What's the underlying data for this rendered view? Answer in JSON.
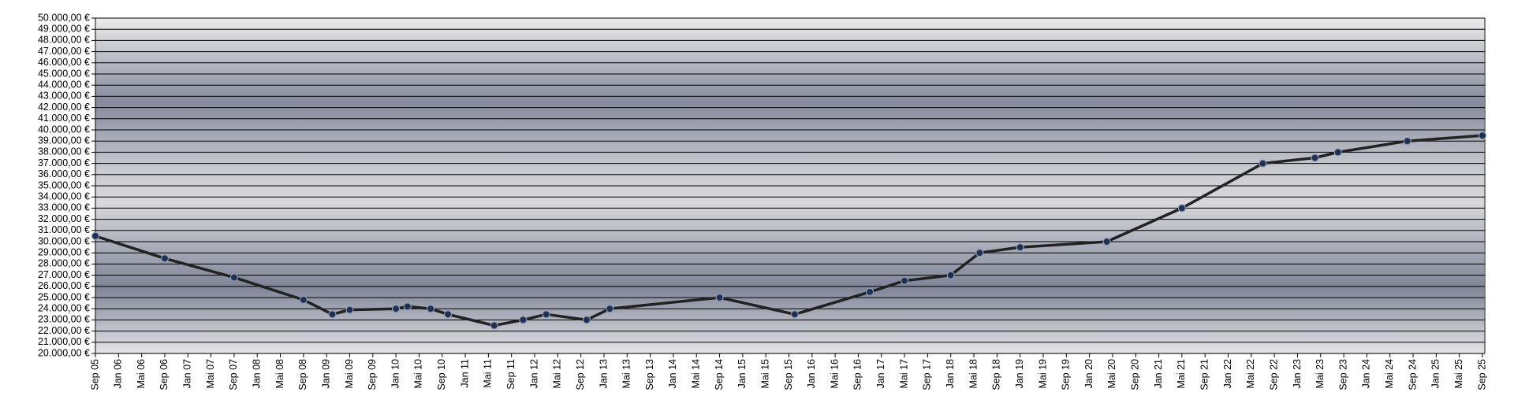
{
  "chart_data": {
    "type": "line",
    "categories": [
      "Sep 05",
      "Jan 06",
      "Mai 06",
      "Sep 06",
      "Jan 07",
      "Mai 07",
      "Sep 07",
      "Jan 08",
      "Mai 08",
      "Sep 08",
      "Jan 09",
      "Mai 09",
      "Sep 09",
      "Jan 10",
      "Mai 10",
      "Sep 10",
      "Jan 11",
      "Mai 11",
      "Sep 11",
      "Jan 12",
      "Mai 12",
      "Sep 12",
      "Jan 13",
      "Mai 13",
      "Sep 13",
      "Jan 14",
      "Mai 14",
      "Sep 14",
      "Jan 15",
      "Mai 15",
      "Sep 15",
      "Jan 16",
      "Mai 16",
      "Sep 16",
      "Jan 17",
      "Mai 17",
      "Sep 17",
      "Jan 18",
      "Mai 18",
      "Sep 18",
      "Jan 19",
      "Mai 19",
      "Sep 19",
      "Jan 20",
      "Mai 20",
      "Sep 20",
      "Jan 21",
      "Mai 21",
      "Sep 21",
      "Jan 22",
      "Mai 22",
      "Sep 22",
      "Jan 23",
      "Mai 23",
      "Sep 23",
      "Jan 24",
      "Mai 24",
      "Sep 24",
      "Jan 25",
      "Mai 25",
      "Sep 25"
    ],
    "x": [
      "Sep 05",
      "Sep 06",
      "Sep 07",
      "Sep 08",
      "Feb 09",
      "Mai 09",
      "Jan 10",
      "Mär 10",
      "Jul 10",
      "Okt 10",
      "Jun 11",
      "Nov 11",
      "Mär 12",
      "Okt 12",
      "Feb 13",
      "Sep 14",
      "Okt 15",
      "Nov 16",
      "Mai 17",
      "Jan 18",
      "Jun 18",
      "Jan 19",
      "Apr 20",
      "Mai 21",
      "Jul 22",
      "Apr 23",
      "Aug 23",
      "Aug 24",
      "Sep 25"
    ],
    "values": [
      30500,
      28500,
      26800,
      24800,
      23500,
      23900,
      24000,
      24200,
      24000,
      23500,
      22500,
      23000,
      23500,
      23000,
      24000,
      25000,
      23500,
      25500,
      26500,
      27000,
      29000,
      29500,
      30000,
      33000,
      37000,
      37500,
      38000,
      39000,
      39500
    ],
    "color": "#222222",
    "marker_color": "#1f3050",
    "ylim": [
      20000,
      50000
    ],
    "yticks": [
      {
        "value": 20000,
        "label": "20.000,00 €"
      },
      {
        "value": 21000,
        "label": "21.000,00 €"
      },
      {
        "value": 22000,
        "label": "22.000,00 €"
      },
      {
        "value": 23000,
        "label": "23.000,00 €"
      },
      {
        "value": 24000,
        "label": "24.000,00 €"
      },
      {
        "value": 25000,
        "label": "25.000,00 €"
      },
      {
        "value": 26000,
        "label": "26.000,00 €"
      },
      {
        "value": 27000,
        "label": "27.000,00 €"
      },
      {
        "value": 28000,
        "label": "28.000,00 €"
      },
      {
        "value": 29000,
        "label": "29.000,00 €"
      },
      {
        "value": 30000,
        "label": "30.000,00 €"
      },
      {
        "value": 31000,
        "label": "31.000,00 €"
      },
      {
        "value": 32000,
        "label": "32.000,00 €"
      },
      {
        "value": 33000,
        "label": "33.000,00 €"
      },
      {
        "value": 34000,
        "label": "34.000,00 €"
      },
      {
        "value": 35000,
        "label": "35.000,00 €"
      },
      {
        "value": 36000,
        "label": "36.000,00 €"
      },
      {
        "value": 37000,
        "label": "37.000,00 €"
      },
      {
        "value": 38000,
        "label": "38.000,00 €"
      },
      {
        "value": 39000,
        "label": "39.000,00 €"
      },
      {
        "value": 40000,
        "label": "40.000,00 €"
      },
      {
        "value": 41000,
        "label": "41.000,00 €"
      },
      {
        "value": 42000,
        "label": "42.000,00 €"
      },
      {
        "value": 43000,
        "label": "43.000,00 €"
      },
      {
        "value": 44000,
        "label": "44.000,00 €"
      },
      {
        "value": 45000,
        "label": "45.000,00 €"
      },
      {
        "value": 46000,
        "label": "46.000,00 €"
      },
      {
        "value": 47000,
        "label": "47.000,00 €"
      },
      {
        "value": 48000,
        "label": "48.000,00 €"
      },
      {
        "value": 49000,
        "label": "49.000,00 €"
      },
      {
        "value": 50000,
        "label": "50.000,00 €"
      }
    ],
    "grid": true
  }
}
